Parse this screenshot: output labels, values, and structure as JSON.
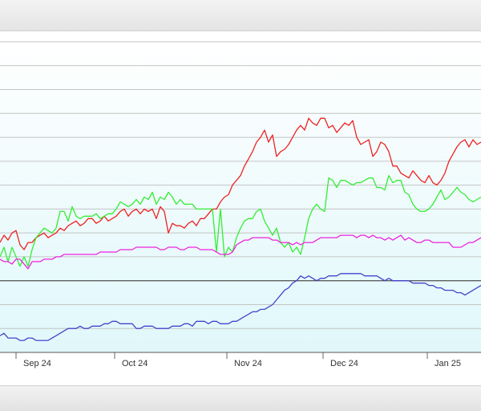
{
  "chart_data": {
    "type": "line",
    "title": "",
    "xlabel": "",
    "ylabel": "",
    "x_ticks": [
      "Sep 24",
      "Oct 24",
      "Nov 24",
      "Dec 24",
      "Jan 25"
    ],
    "grid": true,
    "ylim": [
      0,
      13
    ],
    "reference_line": 3,
    "x": [
      0,
      5,
      10,
      15,
      20,
      25,
      30,
      35,
      40,
      45,
      50,
      55,
      60,
      65,
      70,
      75,
      80,
      85,
      90,
      95,
      100,
      105,
      110,
      115,
      120,
      125,
      130,
      135,
      140,
      145,
      150,
      155,
      160,
      165,
      170,
      175,
      180,
      185,
      190,
      195,
      200,
      205,
      210,
      215,
      220,
      225,
      230,
      235,
      240,
      245,
      250,
      255,
      260,
      265,
      270,
      275,
      280,
      285,
      290,
      295,
      300,
      305,
      310,
      315,
      320,
      325,
      330,
      335,
      340,
      345,
      350,
      355,
      360,
      365,
      370,
      375,
      380,
      385,
      390,
      395,
      400,
      405,
      410,
      415,
      420,
      425,
      430,
      435,
      440,
      445,
      450,
      455,
      460,
      465,
      470,
      475,
      480,
      485,
      490,
      495,
      500,
      505,
      510,
      515,
      520,
      525,
      530,
      535,
      540,
      545,
      550,
      555,
      560,
      565,
      570,
      575,
      580,
      585,
      590,
      595,
      600
    ],
    "series": [
      {
        "color": "#ee2222",
        "values": [
          4.6,
          4.9,
          4.7,
          5.0,
          5.1,
          4.5,
          4.3,
          4.6,
          4.6,
          4.8,
          4.9,
          5.0,
          4.8,
          4.9,
          5.0,
          5.2,
          5.1,
          5.3,
          5.4,
          5.5,
          5.3,
          5.4,
          5.6,
          5.6,
          5.4,
          5.5,
          5.7,
          5.5,
          5.6,
          5.7,
          5.9,
          6.0,
          5.7,
          5.9,
          6.0,
          5.8,
          6.0,
          5.9,
          6.0,
          5.6,
          6.1,
          5.9,
          5.0,
          5.4,
          5.3,
          5.3,
          5.2,
          5.4,
          5.5,
          5.3,
          5.6,
          5.6,
          5.8,
          6.0,
          6.0,
          6.3,
          6.5,
          6.6,
          7.0,
          7.2,
          7.4,
          7.8,
          8.1,
          8.4,
          8.8,
          9.0,
          9.3,
          8.8,
          9.1,
          8.2,
          8.4,
          8.5,
          8.7,
          9.0,
          9.3,
          9.5,
          9.3,
          9.8,
          9.6,
          9.5,
          9.8,
          9.8,
          9.4,
          9.5,
          9.2,
          9.4,
          9.6,
          9.5,
          9.7,
          9.0,
          8.7,
          8.8,
          8.9,
          8.2,
          8.4,
          8.8,
          8.7,
          8.4,
          7.8,
          7.8,
          7.5,
          7.4,
          7.3,
          7.6,
          7.4,
          7.2,
          7.1,
          7.4,
          7.1,
          7.0,
          7.2,
          7.5,
          8.0,
          8.3,
          8.6,
          8.8,
          8.9,
          8.6,
          8.9,
          8.7,
          8.8
        ]
      },
      {
        "color": "#33ee33",
        "values": [
          4.0,
          4.4,
          3.8,
          4.4,
          4.0,
          3.6,
          4.0,
          3.6,
          4.3,
          4.8,
          5.0,
          5.2,
          5.1,
          5.0,
          5.2,
          5.9,
          5.9,
          5.5,
          6.1,
          5.7,
          5.6,
          5.7,
          5.7,
          5.7,
          5.8,
          5.6,
          5.7,
          5.8,
          5.8,
          6.0,
          6.3,
          6.2,
          6.1,
          6.2,
          6.4,
          6.2,
          6.5,
          6.4,
          6.7,
          6.2,
          6.5,
          6.4,
          6.7,
          6.5,
          6.2,
          6.4,
          6.2,
          6.2,
          6.2,
          6.0,
          6.0,
          6.0,
          6.0,
          6.0,
          4.2,
          6.0,
          4.0,
          4.4,
          4.2,
          4.8,
          5.2,
          5.5,
          5.6,
          5.6,
          5.9,
          6.0,
          5.5,
          5.2,
          4.9,
          5.2,
          4.6,
          4.4,
          4.6,
          4.2,
          4.4,
          4.1,
          4.8,
          5.6,
          6.0,
          6.2,
          6.0,
          5.9,
          7.3,
          7.2,
          6.9,
          7.2,
          7.2,
          7.1,
          7.0,
          7.1,
          7.1,
          7.2,
          7.3,
          7.3,
          6.9,
          6.9,
          6.8,
          7.4,
          7.1,
          7.2,
          7.2,
          6.7,
          6.6,
          6.2,
          6.0,
          5.9,
          5.9,
          6.0,
          6.2,
          6.5,
          6.8,
          6.4,
          6.5,
          6.7,
          6.9,
          6.7,
          6.6,
          6.4,
          6.3,
          6.4,
          6.5
        ]
      },
      {
        "color": "#ee22dd",
        "values": [
          3.9,
          3.8,
          3.8,
          3.7,
          3.9,
          3.9,
          3.7,
          3.5,
          3.8,
          3.8,
          3.8,
          3.9,
          3.9,
          3.9,
          4.0,
          4.0,
          4.1,
          4.1,
          4.1,
          4.1,
          4.1,
          4.1,
          4.1,
          4.1,
          4.1,
          4.2,
          4.2,
          4.2,
          4.2,
          4.2,
          4.3,
          4.3,
          4.3,
          4.3,
          4.4,
          4.4,
          4.4,
          4.4,
          4.4,
          4.4,
          4.3,
          4.3,
          4.4,
          4.4,
          4.4,
          4.3,
          4.3,
          4.4,
          4.4,
          4.4,
          4.3,
          4.3,
          4.3,
          4.3,
          4.2,
          4.1,
          4.1,
          4.1,
          4.2,
          4.5,
          4.6,
          4.7,
          4.7,
          4.8,
          4.8,
          4.8,
          4.8,
          4.8,
          4.7,
          4.7,
          4.6,
          4.6,
          4.6,
          4.5,
          4.6,
          4.5,
          4.6,
          4.6,
          4.6,
          4.7,
          4.8,
          4.8,
          4.8,
          4.8,
          4.8,
          4.9,
          4.9,
          4.9,
          4.9,
          4.8,
          4.9,
          4.9,
          4.8,
          4.9,
          4.8,
          4.8,
          4.7,
          4.8,
          4.7,
          4.8,
          4.9,
          4.7,
          4.8,
          4.7,
          4.6,
          4.6,
          4.7,
          4.7,
          4.6,
          4.6,
          4.6,
          4.6,
          4.6,
          4.4,
          4.4,
          4.4,
          4.5,
          4.6,
          4.6,
          4.7,
          4.8
        ]
      },
      {
        "color": "#4444cc",
        "values": [
          0.7,
          0.8,
          0.6,
          0.6,
          0.6,
          0.5,
          0.5,
          0.6,
          0.6,
          0.5,
          0.5,
          0.5,
          0.5,
          0.6,
          0.7,
          0.8,
          0.9,
          1.0,
          1.0,
          1.0,
          1.1,
          1.0,
          1.0,
          1.1,
          1.1,
          1.1,
          1.2,
          1.2,
          1.3,
          1.3,
          1.2,
          1.2,
          1.2,
          1.2,
          1.0,
          1.0,
          1.1,
          1.1,
          1.1,
          1.0,
          1.0,
          1.0,
          1.0,
          1.1,
          1.1,
          1.1,
          1.2,
          1.2,
          1.1,
          1.3,
          1.3,
          1.3,
          1.2,
          1.3,
          1.3,
          1.2,
          1.2,
          1.2,
          1.3,
          1.3,
          1.4,
          1.5,
          1.6,
          1.7,
          1.7,
          1.8,
          1.8,
          1.9,
          2.0,
          2.2,
          2.4,
          2.6,
          2.7,
          2.9,
          3.0,
          3.2,
          3.1,
          3.2,
          3.1,
          3.0,
          3.1,
          3.1,
          3.2,
          3.2,
          3.2,
          3.3,
          3.3,
          3.3,
          3.3,
          3.3,
          3.3,
          3.2,
          3.2,
          3.2,
          3.2,
          3.1,
          3.0,
          3.1,
          3.0,
          3.0,
          3.0,
          3.0,
          3.0,
          2.9,
          2.9,
          2.9,
          2.9,
          2.8,
          2.8,
          2.7,
          2.7,
          2.6,
          2.6,
          2.6,
          2.5,
          2.5,
          2.4,
          2.5,
          2.6,
          2.7,
          2.8
        ]
      }
    ]
  }
}
